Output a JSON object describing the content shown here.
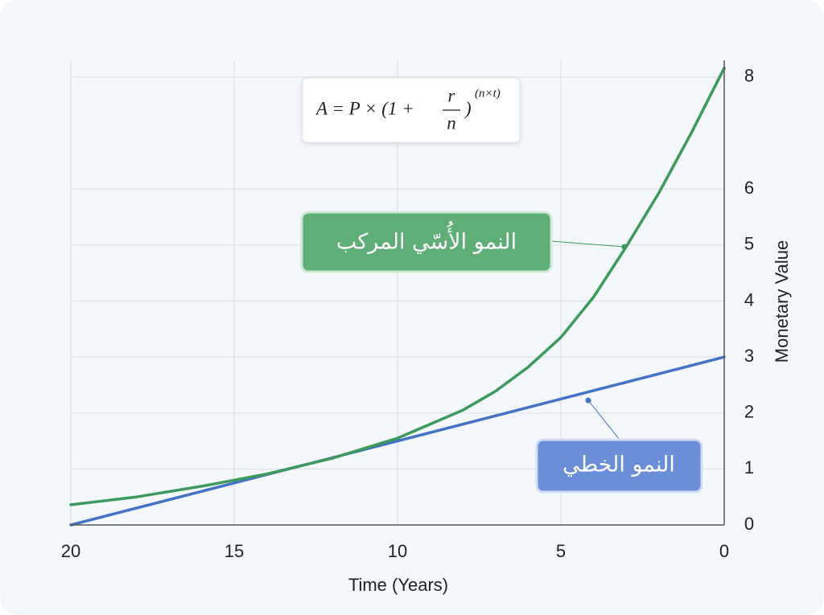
{
  "chart_data": {
    "type": "line",
    "x_label": "Time (Years)",
    "y_label": "Monetary Value",
    "xlim": [
      20,
      0
    ],
    "xticks": [
      20,
      15,
      10,
      5,
      0
    ],
    "ylim": [
      0,
      8.3
    ],
    "yticks": [
      0,
      1,
      2,
      3,
      4,
      5,
      6,
      8
    ],
    "grid": true,
    "series": [
      {
        "name": "النمو الخطي",
        "color": "#4472c4",
        "x": [
          20,
          0
        ],
        "values": [
          0,
          3
        ]
      },
      {
        "name": "النمو الأُسّي المركب",
        "color": "#3b9a5c",
        "x": [
          20,
          18,
          16,
          14,
          12,
          10,
          8,
          7,
          6,
          5,
          4,
          3,
          2,
          1,
          0
        ],
        "values": [
          0.36,
          0.5,
          0.69,
          0.91,
          1.19,
          1.55,
          2.05,
          2.39,
          2.82,
          3.35,
          4.07,
          4.97,
          5.93,
          7.01,
          8.16
        ]
      }
    ],
    "formula": {
      "left": "A = P × (1 +",
      "numerator": "r",
      "denominator": "n",
      "right": ")",
      "exponent": "(n×t)"
    }
  }
}
